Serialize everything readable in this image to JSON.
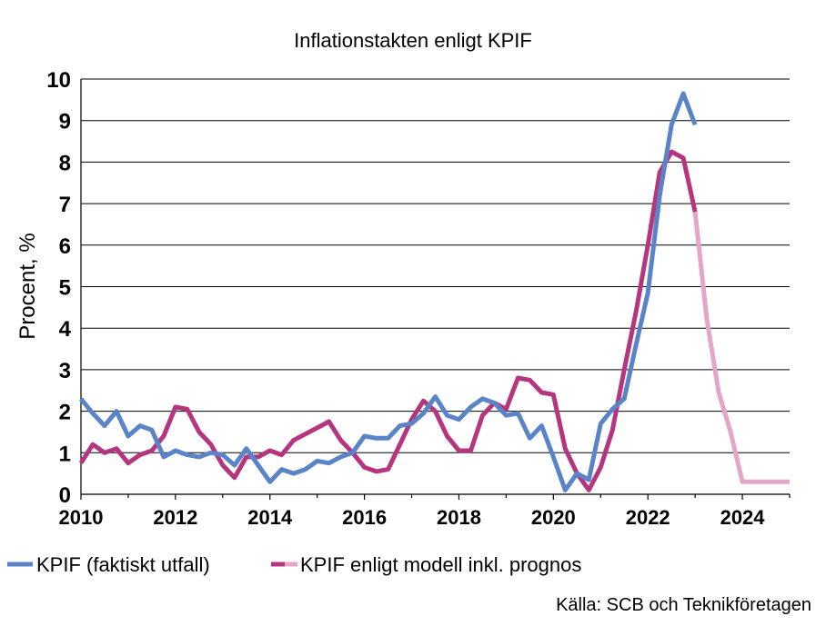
{
  "chart_data": {
    "type": "line",
    "title": "Inflationstakten enligt KPIF",
    "xlabel": "",
    "ylabel": "Procent, %",
    "xlim": [
      2010,
      2025
    ],
    "ylim": [
      0,
      10
    ],
    "x_ticks": [
      2010,
      2012,
      2014,
      2016,
      2018,
      2020,
      2022,
      2024
    ],
    "y_ticks": [
      0,
      1,
      2,
      3,
      4,
      5,
      6,
      7,
      8,
      9,
      10
    ],
    "grid": true,
    "legend_position": "bottom",
    "source": "Källa: SCB och Teknikföretagen",
    "series": [
      {
        "name": "KPIF (faktiskt utfall)",
        "color": "#5B84C8",
        "points": [
          [
            2010.0,
            2.3
          ],
          [
            2010.25,
            1.95
          ],
          [
            2010.5,
            1.65
          ],
          [
            2010.75,
            2.0
          ],
          [
            2011.0,
            1.4
          ],
          [
            2011.25,
            1.65
          ],
          [
            2011.5,
            1.55
          ],
          [
            2011.75,
            0.9
          ],
          [
            2012.0,
            1.05
          ],
          [
            2012.25,
            0.95
          ],
          [
            2012.5,
            0.9
          ],
          [
            2012.75,
            1.0
          ],
          [
            2013.0,
            0.95
          ],
          [
            2013.25,
            0.7
          ],
          [
            2013.5,
            1.1
          ],
          [
            2013.75,
            0.7
          ],
          [
            2014.0,
            0.3
          ],
          [
            2014.25,
            0.6
          ],
          [
            2014.5,
            0.5
          ],
          [
            2014.75,
            0.6
          ],
          [
            2015.0,
            0.8
          ],
          [
            2015.25,
            0.75
          ],
          [
            2015.5,
            0.9
          ],
          [
            2015.75,
            1.0
          ],
          [
            2016.0,
            1.4
          ],
          [
            2016.25,
            1.35
          ],
          [
            2016.5,
            1.35
          ],
          [
            2016.75,
            1.65
          ],
          [
            2017.0,
            1.7
          ],
          [
            2017.25,
            1.95
          ],
          [
            2017.5,
            2.35
          ],
          [
            2017.75,
            1.9
          ],
          [
            2018.0,
            1.8
          ],
          [
            2018.25,
            2.1
          ],
          [
            2018.5,
            2.3
          ],
          [
            2018.75,
            2.2
          ],
          [
            2019.0,
            1.9
          ],
          [
            2019.25,
            1.95
          ],
          [
            2019.5,
            1.35
          ],
          [
            2019.75,
            1.65
          ],
          [
            2020.0,
            0.9
          ],
          [
            2020.25,
            0.1
          ],
          [
            2020.5,
            0.5
          ],
          [
            2020.75,
            0.35
          ],
          [
            2021.0,
            1.7
          ],
          [
            2021.25,
            2.05
          ],
          [
            2021.5,
            2.3
          ],
          [
            2021.75,
            3.6
          ],
          [
            2022.0,
            4.85
          ],
          [
            2022.25,
            7.2
          ],
          [
            2022.5,
            8.9
          ],
          [
            2022.75,
            9.65
          ],
          [
            2023.0,
            8.9
          ]
        ]
      },
      {
        "name": "KPIF enligt modell inkl. prognos",
        "color": "#B5357F",
        "forecast_color": "#E5A5C8",
        "forecast_from": 2023.0,
        "points": [
          [
            2010.0,
            0.75
          ],
          [
            2010.25,
            1.2
          ],
          [
            2010.5,
            1.0
          ],
          [
            2010.75,
            1.1
          ],
          [
            2011.0,
            0.75
          ],
          [
            2011.25,
            0.95
          ],
          [
            2011.5,
            1.05
          ],
          [
            2011.75,
            1.4
          ],
          [
            2012.0,
            2.1
          ],
          [
            2012.25,
            2.05
          ],
          [
            2012.5,
            1.5
          ],
          [
            2012.75,
            1.2
          ],
          [
            2013.0,
            0.7
          ],
          [
            2013.25,
            0.4
          ],
          [
            2013.5,
            0.9
          ],
          [
            2013.75,
            0.9
          ],
          [
            2014.0,
            1.05
          ],
          [
            2014.25,
            0.95
          ],
          [
            2014.5,
            1.3
          ],
          [
            2014.75,
            1.45
          ],
          [
            2015.0,
            1.6
          ],
          [
            2015.25,
            1.75
          ],
          [
            2015.5,
            1.3
          ],
          [
            2015.75,
            1.0
          ],
          [
            2016.0,
            0.65
          ],
          [
            2016.25,
            0.55
          ],
          [
            2016.5,
            0.6
          ],
          [
            2016.75,
            1.2
          ],
          [
            2017.0,
            1.8
          ],
          [
            2017.25,
            2.25
          ],
          [
            2017.5,
            2.0
          ],
          [
            2017.75,
            1.4
          ],
          [
            2018.0,
            1.05
          ],
          [
            2018.25,
            1.05
          ],
          [
            2018.5,
            1.9
          ],
          [
            2018.75,
            2.2
          ],
          [
            2019.0,
            2.05
          ],
          [
            2019.25,
            2.8
          ],
          [
            2019.5,
            2.75
          ],
          [
            2019.75,
            2.45
          ],
          [
            2020.0,
            2.4
          ],
          [
            2020.25,
            1.1
          ],
          [
            2020.5,
            0.5
          ],
          [
            2020.75,
            0.1
          ],
          [
            2021.0,
            0.65
          ],
          [
            2021.25,
            1.55
          ],
          [
            2021.5,
            3.0
          ],
          [
            2021.75,
            4.4
          ],
          [
            2022.0,
            6.0
          ],
          [
            2022.25,
            7.75
          ],
          [
            2022.5,
            8.25
          ],
          [
            2022.75,
            8.1
          ],
          [
            2023.0,
            6.8
          ],
          [
            2023.25,
            4.2
          ],
          [
            2023.5,
            2.45
          ],
          [
            2023.75,
            1.5
          ],
          [
            2024.0,
            0.3
          ],
          [
            2024.25,
            0.3
          ],
          [
            2024.5,
            0.3
          ],
          [
            2024.75,
            0.3
          ],
          [
            2025.0,
            0.3
          ]
        ]
      }
    ]
  }
}
